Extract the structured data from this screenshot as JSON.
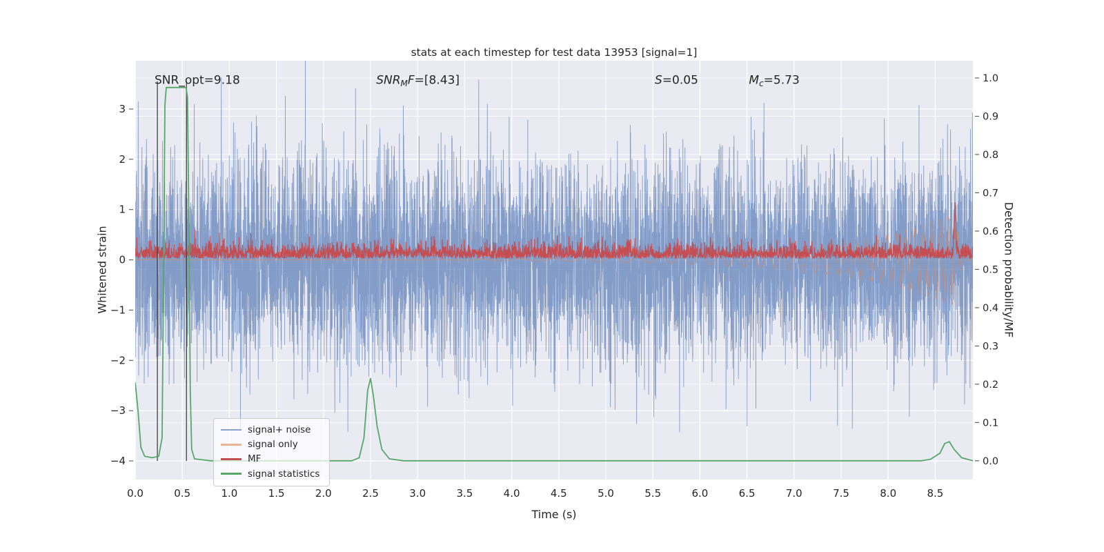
{
  "figure": {
    "title": "stats at each timestep for test data 13953 [signal=1]"
  },
  "chart_data": {
    "type": "line",
    "title": "stats at each timestep for test data 13953 [signal=1]",
    "xlabel": "Time (s)",
    "ylabel_left": "Whitened strain",
    "ylabel_right": "Detection probability/MF",
    "xlim": [
      0,
      8.9
    ],
    "ylim_left": [
      -4.37,
      3.96
    ],
    "ylim_right": [
      -0.049,
      1.045
    ],
    "grid": true,
    "background": "#eaeaf2",
    "grid_color": "#ffffff",
    "x_ticks": [
      0,
      0.5,
      1,
      1.5,
      2,
      2.5,
      3,
      3.5,
      4,
      4.5,
      5,
      5.5,
      6,
      6.5,
      7,
      7.5,
      8,
      8.5
    ],
    "x_tick_labels": [
      "0.0",
      "0.5",
      "1.0",
      "1.5",
      "2.0",
      "2.5",
      "3.0",
      "3.5",
      "4.0",
      "4.5",
      "5.0",
      "5.5",
      "6.0",
      "6.5",
      "7.0",
      "7.5",
      "8.0",
      "8.5"
    ],
    "y_ticks_left": [
      -4,
      -3,
      -2,
      -1,
      0,
      1,
      2,
      3
    ],
    "y_tick_labels_left": [
      "−4",
      "−3",
      "−2",
      "−1",
      "0",
      "1",
      "2",
      "3"
    ],
    "y_ticks_right": [
      0,
      0.1,
      0.2,
      0.3,
      0.4,
      0.5,
      0.6,
      0.7,
      0.8,
      0.9,
      1
    ],
    "y_tick_labels_right": [
      "0.0",
      "0.1",
      "0.2",
      "0.3",
      "0.4",
      "0.5",
      "0.6",
      "0.7",
      "0.8",
      "0.9",
      "1.0"
    ],
    "vlines": [
      {
        "x": 0.235,
        "color": "#3d3d3d"
      },
      {
        "x": 0.545,
        "color": "#3d3d3d"
      }
    ],
    "annotations": [
      {
        "x": 0.205,
        "y": 3.5,
        "parts": [
          {
            "t": "SNR_opt=9.18"
          }
        ]
      },
      {
        "x": 2.56,
        "y": 3.5,
        "parts": [
          {
            "t": "SNR",
            "i": true
          },
          {
            "t": "M",
            "i": true,
            "sub": true
          },
          {
            "t": "F",
            "i": true
          },
          {
            "t": "=[8.43]"
          }
        ]
      },
      {
        "x": 5.52,
        "y": 3.5,
        "parts": [
          {
            "t": "S",
            "i": true
          },
          {
            "t": "=0.05"
          }
        ]
      },
      {
        "x": 6.52,
        "y": 3.5,
        "parts": [
          {
            "t": "M",
            "i": true
          },
          {
            "t": "c",
            "i": true,
            "sub": true
          },
          {
            "t": "=5.73"
          }
        ]
      }
    ],
    "series": [
      {
        "name": "signal+ noise",
        "color": "#4C72B0",
        "alpha": 0.65,
        "width": 0.9,
        "kind": "gaussian-noise",
        "axis": "left",
        "seed": 20230,
        "n": 7000,
        "sigma": 1.0
      },
      {
        "name": "signal only",
        "color": "#DD8452",
        "alpha": 0.6,
        "width": 1.0,
        "kind": "chirp",
        "axis": "left",
        "merger_t": 8.72,
        "peak_amp": 0.92,
        "growth": 0.85,
        "f0": 1.5,
        "f3": 0.004,
        "ringdown_tau": 0.035,
        "ringdown_freq": 14
      },
      {
        "name": "MF",
        "color": "#C44E52",
        "alpha": 1.0,
        "width": 1.2,
        "kind": "abs-noise",
        "axis": "left",
        "seed": 911,
        "n": 3500,
        "base": 0.03,
        "scale": 0.14,
        "spike": {
          "t": 8.71,
          "amp": 0.85,
          "w": 0.012
        }
      },
      {
        "name": "signal statistics",
        "color": "#55A868",
        "alpha": 1.0,
        "width": 1.8,
        "kind": "points",
        "axis": "right",
        "points": [
          [
            0,
            0.205
          ],
          [
            0.03,
            0.13
          ],
          [
            0.06,
            0.035
          ],
          [
            0.1,
            0.012
          ],
          [
            0.18,
            0.008
          ],
          [
            0.25,
            0.012
          ],
          [
            0.285,
            0.06
          ],
          [
            0.3,
            0.45
          ],
          [
            0.315,
            0.93
          ],
          [
            0.33,
            0.975
          ],
          [
            0.54,
            0.975
          ],
          [
            0.555,
            0.95
          ],
          [
            0.57,
            0.62
          ],
          [
            0.585,
            0.18
          ],
          [
            0.6,
            0.03
          ],
          [
            0.63,
            0.005
          ],
          [
            0.8,
            0
          ],
          [
            2.3,
            0
          ],
          [
            2.38,
            0.008
          ],
          [
            2.43,
            0.06
          ],
          [
            2.47,
            0.185
          ],
          [
            2.5,
            0.215
          ],
          [
            2.53,
            0.17
          ],
          [
            2.57,
            0.09
          ],
          [
            2.62,
            0.03
          ],
          [
            2.7,
            0.005
          ],
          [
            2.85,
            0
          ],
          [
            8.35,
            0
          ],
          [
            8.45,
            0.004
          ],
          [
            8.55,
            0.02
          ],
          [
            8.6,
            0.045
          ],
          [
            8.65,
            0.05
          ],
          [
            8.7,
            0.03
          ],
          [
            8.78,
            0.008
          ],
          [
            8.9,
            0
          ]
        ]
      }
    ],
    "legend": {
      "position": "lower left"
    }
  }
}
